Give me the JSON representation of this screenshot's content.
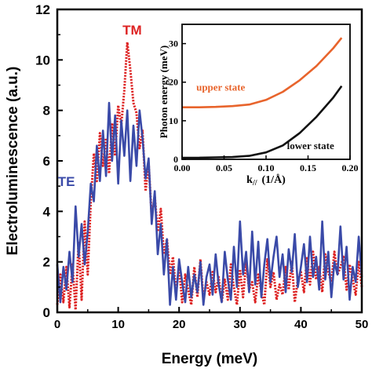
{
  "chart_data": [
    {
      "type": "line",
      "role": "main",
      "xlabel": "Energy (meV)",
      "ylabel": "Electroluminescence (a.u.)",
      "xlim": [
        0,
        50
      ],
      "ylim": [
        0,
        12
      ],
      "xticks": [
        0,
        10,
        20,
        30,
        40,
        50
      ],
      "yticks": [
        0,
        2,
        4,
        6,
        8,
        10,
        12
      ],
      "grid": false,
      "legend": "inline labels",
      "series": [
        {
          "name": "TM",
          "color": "#dd2222",
          "style": "dotted",
          "x": [
            0,
            0.5,
            1,
            1.5,
            2,
            2.5,
            3,
            3.5,
            4,
            4.5,
            5,
            5.5,
            6,
            6.5,
            7,
            7.5,
            8,
            8.5,
            9,
            9.5,
            10,
            10.5,
            11,
            11.5,
            12,
            12.5,
            13,
            13.5,
            14,
            14.5,
            15,
            15.5,
            16,
            16.5,
            17,
            17.5,
            18,
            18.5,
            19,
            19.5,
            20,
            20.5,
            21,
            21.5,
            22,
            22.5,
            23,
            23.5,
            24,
            24.5,
            25,
            25.5,
            26,
            26.5,
            27,
            27.5,
            28,
            28.5,
            29,
            29.5,
            30,
            30.5,
            31,
            31.5,
            32,
            32.5,
            33,
            33.5,
            34,
            34.5,
            35,
            35.5,
            36,
            36.5,
            37,
            37.5,
            38,
            38.5,
            39,
            39.5,
            40,
            40.5,
            41,
            41.5,
            42,
            42.5,
            43,
            43.5,
            44,
            44.5,
            45,
            45.5,
            46,
            46.5,
            47,
            47.5,
            48,
            48.5,
            49,
            49.5,
            50
          ],
          "y": [
            0.3,
            1.5,
            0.4,
            1.8,
            0.2,
            1.9,
            0.1,
            2.8,
            0.5,
            3.6,
            1.5,
            4.4,
            6.3,
            5.2,
            7.1,
            5.8,
            6.9,
            5.5,
            7.5,
            6.2,
            8.2,
            7.4,
            8.8,
            10.7,
            9.6,
            8.3,
            7.9,
            6.5,
            7.2,
            4.8,
            5.9,
            3.8,
            4.6,
            3.2,
            4.1,
            2.3,
            2.9,
            1.5,
            2.2,
            0.8,
            1.8,
            0.4,
            1.5,
            0.9,
            0.3,
            1.8,
            0.6,
            2.1,
            0.5,
            1.2,
            0.7,
            1.6,
            0.8,
            1.4,
            0.4,
            1.3,
            0.5,
            1.9,
            1.0,
            0.3,
            1.7,
            0.6,
            2.0,
            0.9,
            1.2,
            0.4,
            1.5,
            0.8,
            0.3,
            2.1,
            1.0,
            1.6,
            0.5,
            1.1,
            0.7,
            1.8,
            0.9,
            2.0,
            0.4,
            1.3,
            1.6,
            0.8,
            2.2,
            1.1,
            2.4,
            1.3,
            1.8,
            0.8,
            2.3,
            1.6,
            1.2,
            2.4,
            1.5,
            1.8,
            2.2,
            0.9,
            1.9,
            1.3,
            0.7,
            2.0,
            1.0
          ]
        },
        {
          "name": "TE",
          "color": "#3a4aa8",
          "style": "solid",
          "x": [
            0,
            0.5,
            1,
            1.5,
            2,
            2.5,
            3,
            3.5,
            4,
            4.5,
            5,
            5.5,
            6,
            6.5,
            7,
            7.5,
            8,
            8.5,
            9,
            9.5,
            10,
            10.5,
            11,
            11.5,
            12,
            12.5,
            13,
            13.5,
            14,
            14.5,
            15,
            15.5,
            16,
            16.5,
            17,
            17.5,
            18,
            18.5,
            19,
            19.5,
            20,
            20.5,
            21,
            21.5,
            22,
            22.5,
            23,
            23.5,
            24,
            24.5,
            25,
            25.5,
            26,
            26.5,
            27,
            27.5,
            28,
            28.5,
            29,
            29.5,
            30,
            30.5,
            31,
            31.5,
            32,
            32.5,
            33,
            33.5,
            34,
            34.5,
            35,
            35.5,
            36,
            36.5,
            37,
            37.5,
            38,
            38.5,
            39,
            39.5,
            40,
            40.5,
            41,
            41.5,
            42,
            42.5,
            43,
            43.5,
            44,
            44.5,
            45,
            45.5,
            46,
            46.5,
            47,
            47.5,
            48,
            48.5,
            49,
            49.5,
            50
          ],
          "y": [
            1.9,
            0.4,
            1.8,
            0.9,
            2.4,
            1.2,
            4.2,
            2.2,
            3.5,
            1.9,
            3.2,
            5.1,
            4.4,
            6.6,
            5.2,
            7.2,
            5.4,
            8.3,
            6.0,
            7.8,
            5.1,
            7.6,
            6.2,
            8.0,
            5.2,
            7.4,
            5.8,
            8.0,
            6.9,
            5.3,
            6.1,
            3.5,
            4.8,
            2.3,
            3.5,
            1.5,
            2.9,
            0.3,
            1.8,
            0.5,
            2.1,
            1.2,
            0.4,
            1.8,
            0.6,
            1.5,
            0.8,
            2.0,
            0.3,
            1.4,
            1.9,
            0.7,
            2.3,
            1.1,
            0.4,
            2.4,
            1.3,
            0.5,
            2.6,
            1.0,
            3.6,
            1.5,
            2.4,
            0.8,
            3.2,
            1.1,
            2.8,
            0.6,
            1.9,
            2.9,
            1.2,
            2.2,
            3.0,
            1.4,
            2.3,
            0.8,
            2.5,
            1.6,
            3.1,
            1.0,
            1.8,
            2.7,
            1.2,
            3.0,
            1.4,
            2.2,
            0.9,
            3.6,
            1.3,
            2.4,
            0.6,
            2.0,
            1.5,
            3.4,
            1.3,
            2.6,
            0.5,
            1.8,
            1.2,
            3.0,
            1.4
          ]
        }
      ],
      "annotations": [
        {
          "text": "TM",
          "x": 12.3,
          "y": 11.0,
          "color": "#dd2222"
        },
        {
          "text": "TE",
          "x": 1.5,
          "y": 5.0,
          "color": "#3a4aa8"
        }
      ]
    },
    {
      "type": "line",
      "role": "inset",
      "xlabel_base": "k",
      "xlabel_sub": "//",
      "xlabel_unit": "(1/Å)",
      "ylabel": "Photon energy (meV)",
      "xlim": [
        0,
        0.2
      ],
      "ylim": [
        0,
        35
      ],
      "xticks": [
        "0.00",
        "0.05",
        "0.10",
        "0.15",
        "0.20"
      ],
      "yticks": [
        0,
        10,
        20,
        30
      ],
      "grid": false,
      "series": [
        {
          "name": "upper state",
          "color": "#e8642c",
          "x": [
            0,
            0.02,
            0.04,
            0.06,
            0.08,
            0.1,
            0.12,
            0.14,
            0.16,
            0.18,
            0.19
          ],
          "y": [
            13.5,
            13.5,
            13.6,
            13.8,
            14.2,
            15.4,
            17.5,
            20.5,
            24.2,
            28.8,
            31.5
          ]
        },
        {
          "name": "lower state",
          "color": "#111111",
          "x": [
            0,
            0.02,
            0.04,
            0.06,
            0.08,
            0.1,
            0.12,
            0.14,
            0.16,
            0.18,
            0.19
          ],
          "y": [
            0.4,
            0.4,
            0.5,
            0.6,
            0.9,
            1.8,
            3.6,
            6.8,
            11.0,
            16.0,
            19.0
          ]
        }
      ]
    }
  ]
}
